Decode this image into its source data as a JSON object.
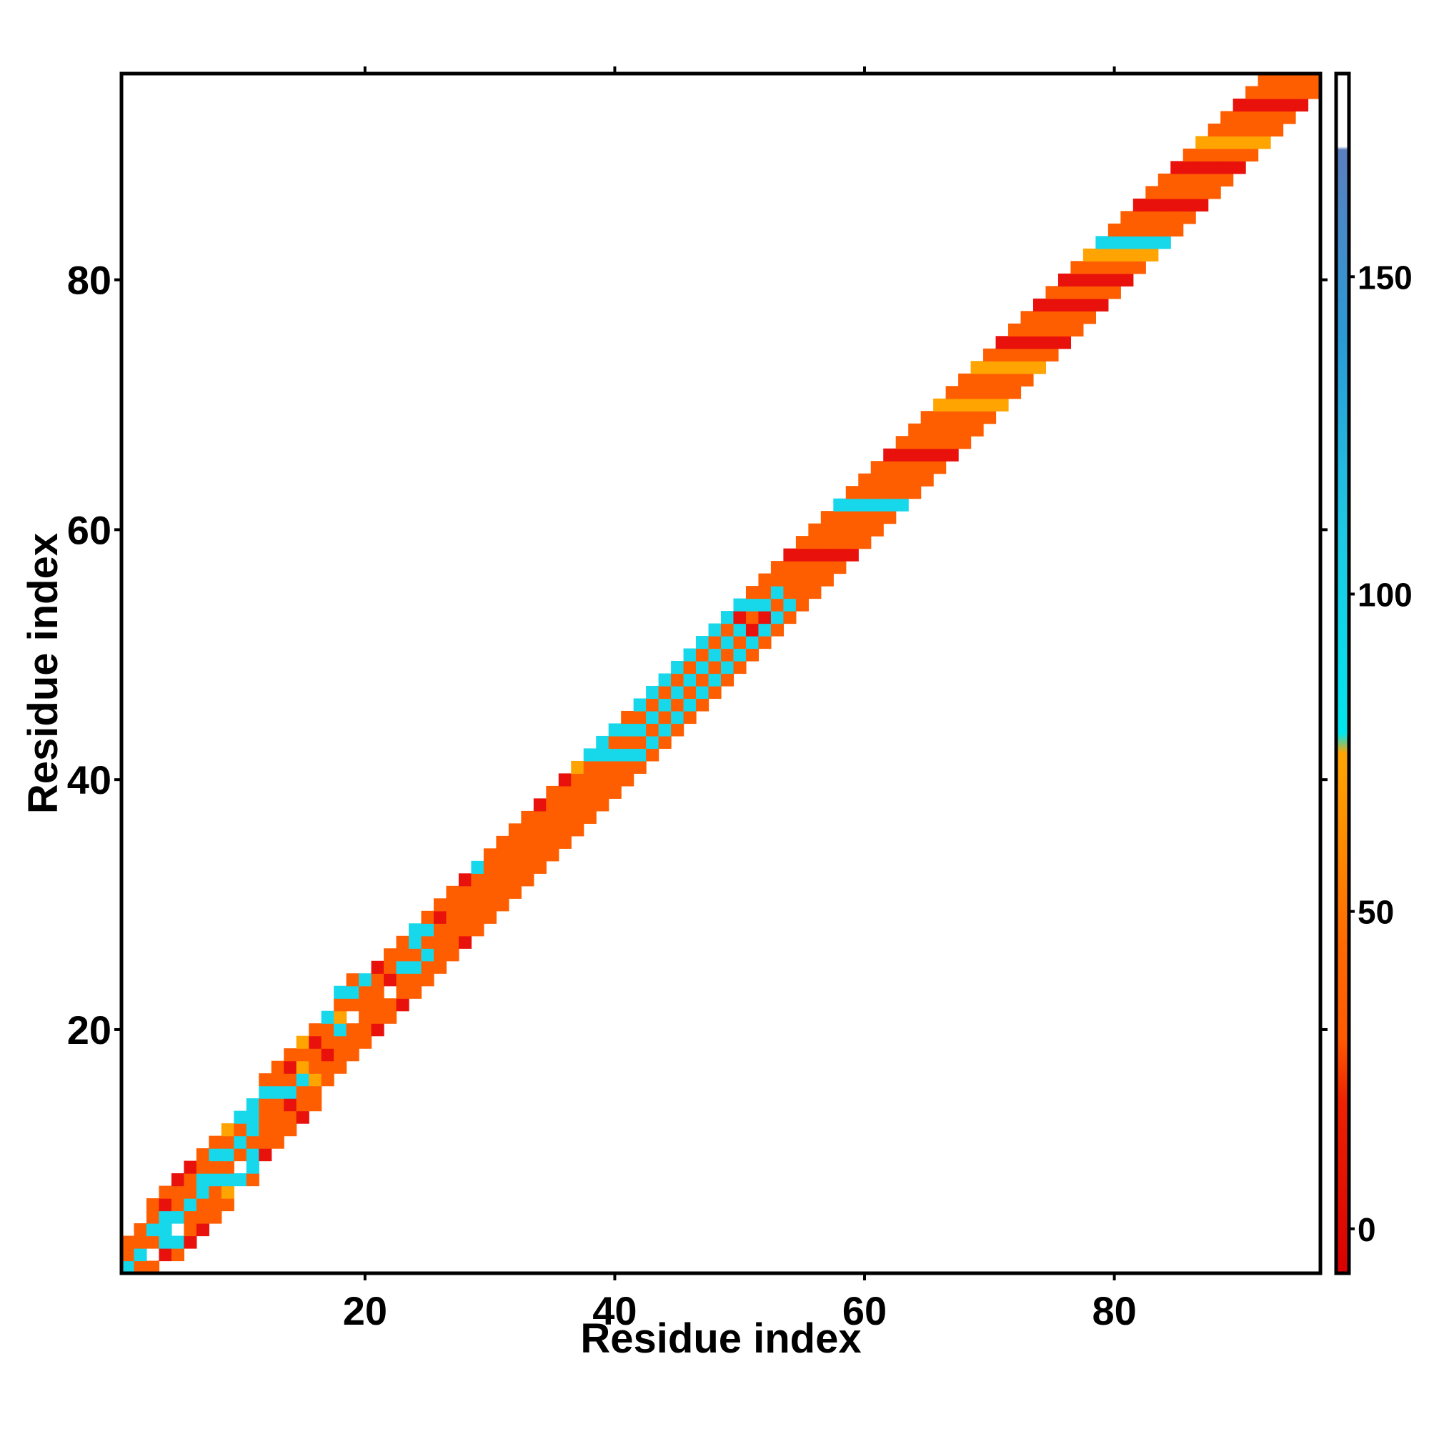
{
  "chart_data": {
    "type": "heatmap",
    "xlabel": "Residue index",
    "ylabel": "Residue index",
    "n_residues": 96,
    "xlim": [
      0.5,
      96.5
    ],
    "ylim": [
      0.5,
      96.5
    ],
    "x_ticks": [
      20,
      40,
      60,
      80
    ],
    "y_ticks": [
      20,
      40,
      60,
      80
    ],
    "colorbar": {
      "ticks": [
        0,
        50,
        100,
        150
      ],
      "range": [
        -7,
        182
      ],
      "stops": [
        {
          "value": -7,
          "color": "#d90000"
        },
        {
          "value": 20,
          "color": "#ee2200"
        },
        {
          "value": 30,
          "color": "#ff5a00"
        },
        {
          "value": 45,
          "color": "#ff6a00"
        },
        {
          "value": 60,
          "color": "#ff8a00"
        },
        {
          "value": 75,
          "color": "#ffa500"
        },
        {
          "value": 78,
          "color": "#00e5ee"
        },
        {
          "value": 110,
          "color": "#1ec8e4"
        },
        {
          "value": 140,
          "color": "#2a9ad6"
        },
        {
          "value": 170,
          "color": "#5b7fc0"
        },
        {
          "value": 170.5,
          "color": "#ffffff"
        },
        {
          "value": 182,
          "color": "#ffffff"
        }
      ]
    },
    "grid": false,
    "legend": "colorbar right",
    "cell_colors": {
      "R": "#e8110c",
      "O": "#ff5e00",
      "A": "#ffa400",
      "C": "#16d8ea",
      "B": "#31b9db"
    },
    "diagonal_offsets": [
      -3,
      -2,
      -1,
      1,
      2,
      3
    ],
    "cells_by_row": [
      "C:0,O:1,O:2",
      "O:0,C:1,O:2,O:3",
      "O:0,O:2,C:3,O:4,O:5",
      "R:1,C:2,C:3,C:4,R:5,O:6",
      "O:1,C:2,C:4,O:5,O:6,R:7",
      "R:2,O:3,O:4,C:5,O:6,O:7,R:8",
      "R:3,O:4,O:5,C:6,C:7,O:8,O:9",
      "O:4,O:5,O:6,C:7,O:8,C:9,O:10",
      "O:5,A:6,C:7,O:8,C:9,O:10,A:11",
      "C:7,O:9,C:10,O:11,C:12",
      "O:7,C:8,C:9,O:10,C:11,C:12,C:13",
      "R:9,O:10,O:11,O:12,O:13,C:14,O:15",
      "O:10,O:11,O:12,O:13,C:14,O:15,O:16",
      "O:11,O:12,R:13,C:14,O:15,R:16,O:17",
      "R:12,O:13,O:14,C:15,A:16,O:17,A:18",
      "O:13,O:14,A:15,O:16,O:17,R:18,O:19",
      "O:15,O:16,R:17,O:18,O:19,C:20",
      "O:16,O:17,O:18,C:19,A:20,O:21,C:22",
      "O:17,O:18,O:19,O:21,C:22,O:23",
      "O:18,O:19,O:20,O:21,O:22,C:23",
      "R:19,O:20,O:21,O:22,O:23,R:24",
      "O:20,O:21,R:23,O:24,O:25",
      "R:21,O:22,O:23,C:24,O:25,O:26",
      "O:22,O:23,C:24,O:25,C:26,C:27",
      "O:23,O:24,C:25,O:26,C:27,O:28",
      "O:24,O:25,O:26,O:27,R:28,O:29",
      "O:25,O:26,O:27,O:28,O:29,O:30",
      "R:26,O:27,O:28,O:29,O:30,R:31",
      "O:27,O:28,O:29,O:30,O:31,C:32",
      "O:28,O:29,O:30,O:31,O:32,O:33",
      "O:29,O:30,O:31,O:32,O:33,O:34",
      "O:30,O:31,O:32,O:33,O:34,O:35",
      "O:31,O:32,O:33,O:34,O:35,O:36",
      "O:32,O:33,O:34,O:35,O:36,R:37",
      "O:33,O:34,O:35,O:36,O:37,O:38",
      "O:34,O:35,O:36,O:37,O:38,R:39",
      "O:35,O:36,O:37,O:38,O:39,A:40",
      "O:36,O:37,O:38,O:39,O:40,C:41",
      "O:37,O:38,O:39,O:40,C:41,C:42",
      "O:38,O:39,O:40,C:41,O:42,C:43",
      "O:39,O:40,C:41,O:42,C:43,O:44",
      "O:40,C:41,O:42,C:43,O:44,C:45",
      "O:41,C:42,O:43,C:44,O:45,C:46",
      "O:42,C:43,O:44,C:45,O:46,C:47",
      "O:43,C:44,O:45,C:46,O:47,C:48",
      "O:44,C:45,O:46,C:47,O:48,C:49",
      "O:45,C:46,O:47,C:48,O:49,C:50",
      "O:46,C:47,O:48,C:49,O:50,C:51",
      "O:47,C:48,O:49,C:50,O:51,C:52",
      "O:48,C:49,O:50,C:51,R:52,C:53",
      "O:49,C:50,R:51,O:52,C:53,O:54",
      "O:50,C:51,R:52,C:53,O:54,O:55",
      "O:51,C:52,O:53,C:54,O:55,O:56",
      "O:52,C:53,O:54,O:55,O:56,R:57",
      "O:53,O:54,O:55,O:56,R:57,O:58",
      "O:54,O:55,O:56,R:57,O:58,O:59",
      "O:55,O:56,R:57,O:58,O:59,O:60",
      "O:56,R:57,O:58,O:59,O:60,C:61",
      "R:57,O:58,O:59,O:60,C:61,O:62",
      "O:58,O:59,O:60,C:61,O:62,O:63",
      "O:59,O:60,C:61,O:62,O:63,O:64",
      "O:60,C:61,O:62,O:63,O:64,R:65",
      "C:61,O:62,O:63,O:64,R:65,O:66",
      "O:62,O:63,O:64,R:65,O:66,O:67",
      "O:63,O:64,R:65,O:66,O:67,O:68",
      "O:64,R:65,O:66,O:67,O:68,A:69",
      "R:65,O:66,O:67,O:68,A:69,O:70",
      "O:66,O:67,O:68,A:69,O:70,O:71",
      "O:67,O:68,A:69,O:70,O:71,A:72",
      "O:68,A:69,O:70,O:71,A:72,O:73",
      "A:69,O:70,O:71,A:72,O:73,R:74",
      "O:70,O:71,A:72,O:73,R:74,O:75",
      "O:71,A:72,O:73,R:74,O:75,O:76",
      "A:72,O:73,R:74,O:75,O:76,R:77",
      "O:73,R:74,O:75,O:76,R:77,O:78",
      "R:74,O:75,O:76,R:77,O:78,R:79",
      "O:75,O:76,R:77,O:78,R:79,O:80",
      "O:76,R:77,O:78,R:79,O:80,A:81",
      "R:77,O:78,R:79,O:80,A:81,C:82",
      "O:78,R:79,O:80,A:81,C:82,O:83",
      "R:79,O:80,A:81,C:82,O:83,O:84",
      "O:80,A:81,C:82,O:83,O:84,R:85",
      "A:81,C:82,O:83,O:84,R:85,O:86",
      "C:82,O:83,O:84,R:85,O:86,O:87",
      "O:83,O:84,R:85,O:86,O:87,R:88",
      "O:84,R:85,O:86,O:87,R:88,O:89",
      "R:85,O:86,O:87,R:88,O:89,A:90",
      "O:86,O:87,R:88,O:89,A:90,O:91",
      "O:87,R:88,O:89,A:90,O:91,O:92",
      "R:88,O:89,A:90,O:91,O:92,R:93",
      "O:89,A:90,O:91,O:92,R:93,O:94",
      "A:90,O:91,O:92,R:93,O:94,O:95",
      "O:91,O:92,R:93,O:94,O:95",
      "O:92,R:93,O:94,O:95",
      "R:93,O:94,O:95",
      "O:94,O:95"
    ]
  }
}
